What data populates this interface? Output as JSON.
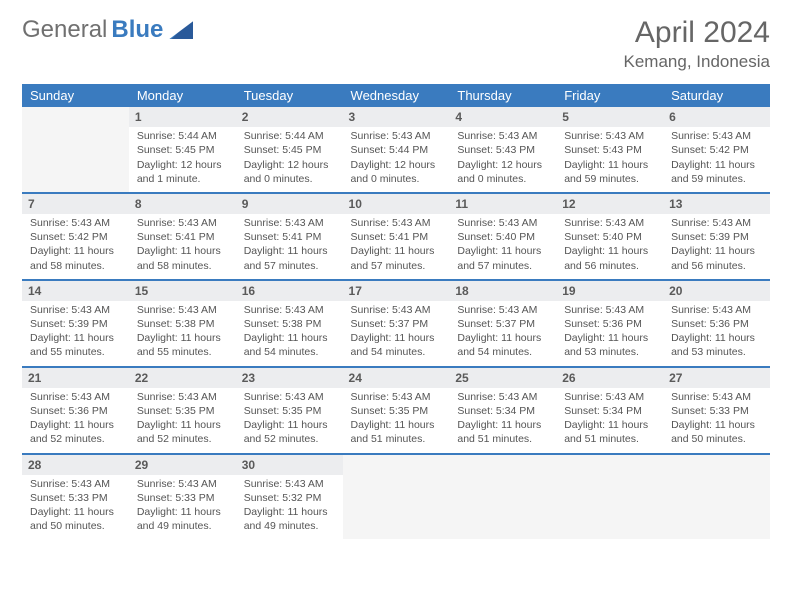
{
  "logo": {
    "part1": "General",
    "part2": "Blue"
  },
  "header": {
    "month_year": "April 2024",
    "location": "Kemang, Indonesia"
  },
  "colors": {
    "header_bg": "#3a7bbf",
    "daynum_bg": "#ecedef",
    "row_border": "#3a7bbf",
    "text_body": "#555555",
    "text_title": "#666666"
  },
  "weekdays": [
    "Sunday",
    "Monday",
    "Tuesday",
    "Wednesday",
    "Thursday",
    "Friday",
    "Saturday"
  ],
  "days": [
    {
      "num": 1,
      "sunrise": "5:44 AM",
      "sunset": "5:45 PM",
      "daylight": "12 hours and 1 minute."
    },
    {
      "num": 2,
      "sunrise": "5:44 AM",
      "sunset": "5:45 PM",
      "daylight": "12 hours and 0 minutes."
    },
    {
      "num": 3,
      "sunrise": "5:43 AM",
      "sunset": "5:44 PM",
      "daylight": "12 hours and 0 minutes."
    },
    {
      "num": 4,
      "sunrise": "5:43 AM",
      "sunset": "5:43 PM",
      "daylight": "12 hours and 0 minutes."
    },
    {
      "num": 5,
      "sunrise": "5:43 AM",
      "sunset": "5:43 PM",
      "daylight": "11 hours and 59 minutes."
    },
    {
      "num": 6,
      "sunrise": "5:43 AM",
      "sunset": "5:42 PM",
      "daylight": "11 hours and 59 minutes."
    },
    {
      "num": 7,
      "sunrise": "5:43 AM",
      "sunset": "5:42 PM",
      "daylight": "11 hours and 58 minutes."
    },
    {
      "num": 8,
      "sunrise": "5:43 AM",
      "sunset": "5:41 PM",
      "daylight": "11 hours and 58 minutes."
    },
    {
      "num": 9,
      "sunrise": "5:43 AM",
      "sunset": "5:41 PM",
      "daylight": "11 hours and 57 minutes."
    },
    {
      "num": 10,
      "sunrise": "5:43 AM",
      "sunset": "5:41 PM",
      "daylight": "11 hours and 57 minutes."
    },
    {
      "num": 11,
      "sunrise": "5:43 AM",
      "sunset": "5:40 PM",
      "daylight": "11 hours and 57 minutes."
    },
    {
      "num": 12,
      "sunrise": "5:43 AM",
      "sunset": "5:40 PM",
      "daylight": "11 hours and 56 minutes."
    },
    {
      "num": 13,
      "sunrise": "5:43 AM",
      "sunset": "5:39 PM",
      "daylight": "11 hours and 56 minutes."
    },
    {
      "num": 14,
      "sunrise": "5:43 AM",
      "sunset": "5:39 PM",
      "daylight": "11 hours and 55 minutes."
    },
    {
      "num": 15,
      "sunrise": "5:43 AM",
      "sunset": "5:38 PM",
      "daylight": "11 hours and 55 minutes."
    },
    {
      "num": 16,
      "sunrise": "5:43 AM",
      "sunset": "5:38 PM",
      "daylight": "11 hours and 54 minutes."
    },
    {
      "num": 17,
      "sunrise": "5:43 AM",
      "sunset": "5:37 PM",
      "daylight": "11 hours and 54 minutes."
    },
    {
      "num": 18,
      "sunrise": "5:43 AM",
      "sunset": "5:37 PM",
      "daylight": "11 hours and 54 minutes."
    },
    {
      "num": 19,
      "sunrise": "5:43 AM",
      "sunset": "5:36 PM",
      "daylight": "11 hours and 53 minutes."
    },
    {
      "num": 20,
      "sunrise": "5:43 AM",
      "sunset": "5:36 PM",
      "daylight": "11 hours and 53 minutes."
    },
    {
      "num": 21,
      "sunrise": "5:43 AM",
      "sunset": "5:36 PM",
      "daylight": "11 hours and 52 minutes."
    },
    {
      "num": 22,
      "sunrise": "5:43 AM",
      "sunset": "5:35 PM",
      "daylight": "11 hours and 52 minutes."
    },
    {
      "num": 23,
      "sunrise": "5:43 AM",
      "sunset": "5:35 PM",
      "daylight": "11 hours and 52 minutes."
    },
    {
      "num": 24,
      "sunrise": "5:43 AM",
      "sunset": "5:35 PM",
      "daylight": "11 hours and 51 minutes."
    },
    {
      "num": 25,
      "sunrise": "5:43 AM",
      "sunset": "5:34 PM",
      "daylight": "11 hours and 51 minutes."
    },
    {
      "num": 26,
      "sunrise": "5:43 AM",
      "sunset": "5:34 PM",
      "daylight": "11 hours and 51 minutes."
    },
    {
      "num": 27,
      "sunrise": "5:43 AM",
      "sunset": "5:33 PM",
      "daylight": "11 hours and 50 minutes."
    },
    {
      "num": 28,
      "sunrise": "5:43 AM",
      "sunset": "5:33 PM",
      "daylight": "11 hours and 50 minutes."
    },
    {
      "num": 29,
      "sunrise": "5:43 AM",
      "sunset": "5:33 PM",
      "daylight": "11 hours and 49 minutes."
    },
    {
      "num": 30,
      "sunrise": "5:43 AM",
      "sunset": "5:32 PM",
      "daylight": "11 hours and 49 minutes."
    }
  ],
  "labels": {
    "sunrise": "Sunrise:",
    "sunset": "Sunset:",
    "daylight": "Daylight:"
  },
  "layout": {
    "first_weekday_index": 1,
    "total_cells": 35
  }
}
